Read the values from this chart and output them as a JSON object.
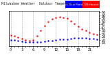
{
  "title_left": "Milwaukee Weather  Outdoor Temperature",
  "legend_blue_text": "vs Dew Point",
  "legend_red_text": "(24 Hours)",
  "temp_color": "#ff0000",
  "dew_color": "#0000ff",
  "bg_color": "#ffffff",
  "plot_bg": "#ffffff",
  "border_color": "#000000",
  "ylim": [
    10,
    68
  ],
  "ytick_positions": [
    15,
    20,
    25,
    30,
    35,
    40,
    45,
    50,
    55,
    60,
    65
  ],
  "ytick_labels": [
    "15",
    "20",
    "25",
    "30",
    "35",
    "40",
    "45",
    "50",
    "55",
    "60",
    "65"
  ],
  "xlim": [
    -0.5,
    23.5
  ],
  "time_hours": [
    0,
    1,
    2,
    3,
    4,
    5,
    6,
    7,
    8,
    9,
    10,
    11,
    12,
    13,
    14,
    15,
    16,
    17,
    18,
    19,
    20,
    21,
    22,
    23
  ],
  "temp_values": [
    28,
    26,
    24,
    22,
    20,
    19,
    20,
    26,
    35,
    43,
    50,
    54,
    57,
    58,
    57,
    55,
    51,
    46,
    42,
    38,
    35,
    32,
    30,
    29
  ],
  "dew_values": [
    20,
    20,
    19,
    18,
    17,
    16,
    16,
    16,
    17,
    18,
    19,
    19,
    20,
    21,
    21,
    21,
    22,
    23,
    23,
    23,
    23,
    22,
    22,
    21
  ],
  "vgrid_positions": [
    0,
    3,
    6,
    9,
    12,
    15,
    18,
    21
  ],
  "vgrid_color": "#aaaaaa",
  "vgrid_style": "--",
  "vgrid_lw": 0.4,
  "xtick_positions": [
    0,
    1,
    2,
    3,
    4,
    5,
    6,
    7,
    8,
    9,
    10,
    11,
    12,
    13,
    14,
    15,
    16,
    17,
    18,
    19,
    20,
    21,
    22,
    23
  ],
  "dot_size": 3,
  "tick_fontsize": 3.5,
  "title_fontsize": 3.5,
  "legend_fontsize": 3.0,
  "spine_lw": 0.5
}
